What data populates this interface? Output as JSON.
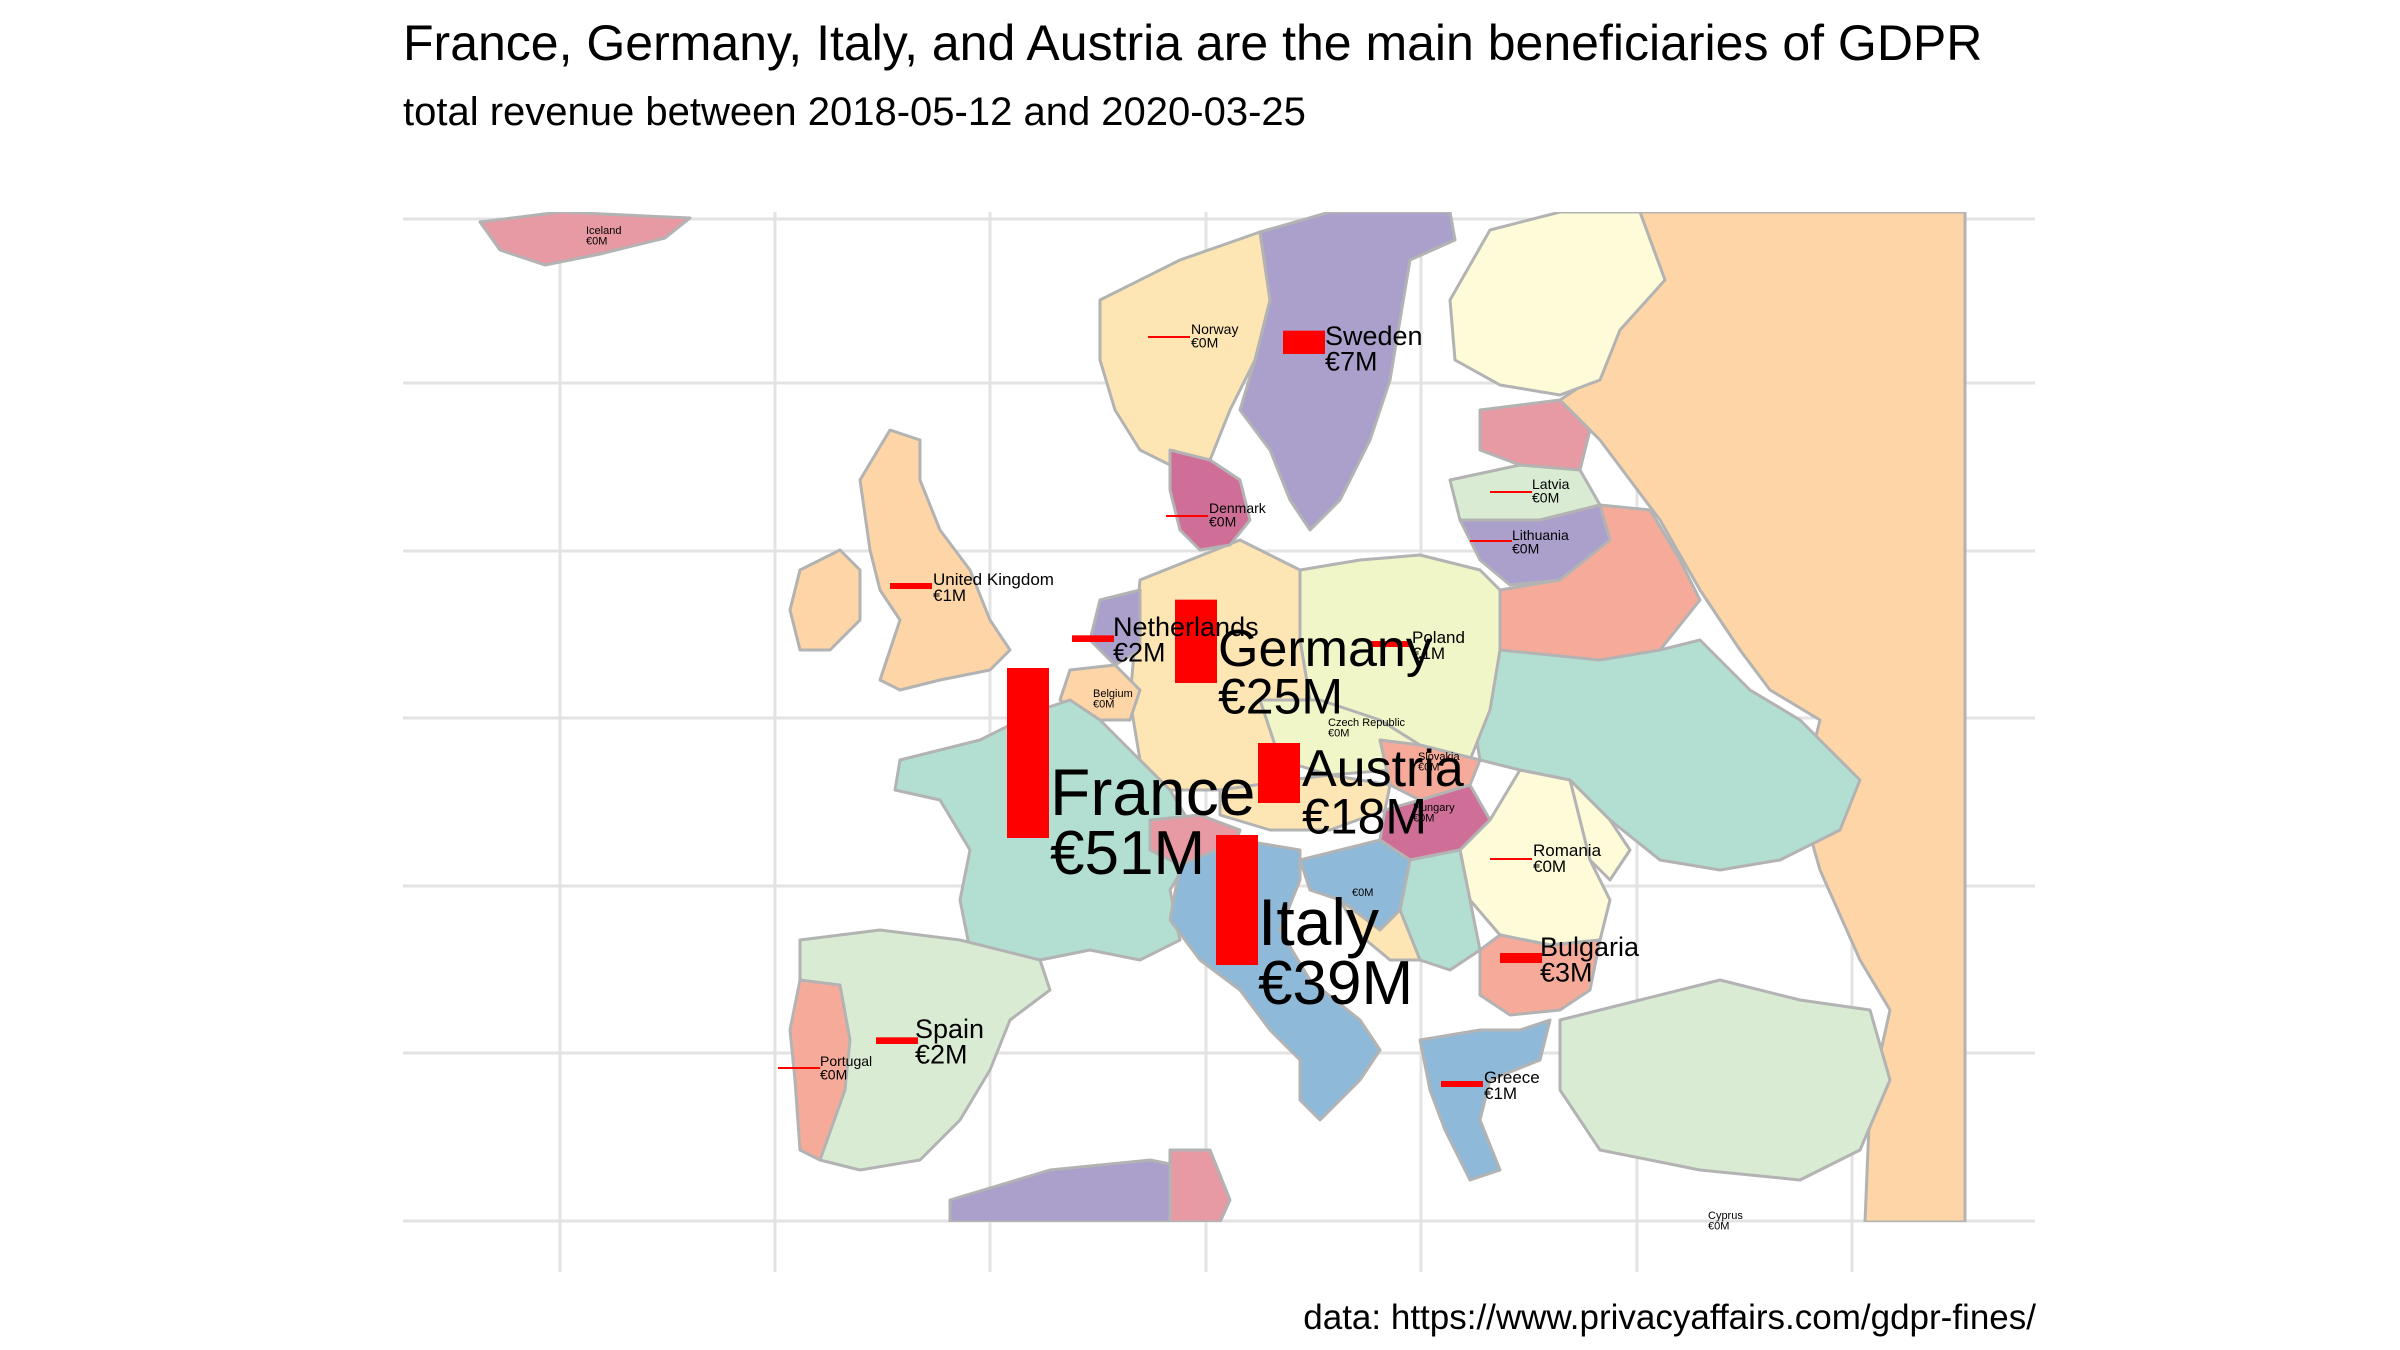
{
  "title": "France, Germany, Italy, and Austria are the main beneficiaries of GDPR",
  "subtitle": "total revenue between 2018-05-12 and 2020-03-25",
  "caption": "data: https://www.privacyaffairs.com/gdpr-fines/",
  "colors": {
    "bar": "#ff0000",
    "grid": "#e3e3e3",
    "border": "#b3b3b3"
  },
  "chart_data": {
    "type": "bar",
    "encoding": "bar height proportional to total GDPR fine revenue per country",
    "unit": "€M",
    "countries": [
      {
        "name": "France",
        "value": 51,
        "label": "€51M",
        "size": "xl"
      },
      {
        "name": "Italy",
        "value": 39,
        "label": "€39M",
        "size": "xl"
      },
      {
        "name": "Germany",
        "value": 25,
        "label": "€25M",
        "size": "l"
      },
      {
        "name": "Austria",
        "value": 18,
        "label": "€18M",
        "size": "l"
      },
      {
        "name": "Sweden",
        "value": 7,
        "label": "€7M",
        "size": "m"
      },
      {
        "name": "Bulgaria",
        "value": 3,
        "label": "€3M",
        "size": "m"
      },
      {
        "name": "Spain",
        "value": 2,
        "label": "€2M",
        "size": "m"
      },
      {
        "name": "Netherlands",
        "value": 2,
        "label": "€2M",
        "size": "m"
      },
      {
        "name": "United Kingdom",
        "value": 1,
        "label": "€1M",
        "size": "s"
      },
      {
        "name": "Poland",
        "value": 1,
        "label": "€1M",
        "size": "s"
      },
      {
        "name": "Greece",
        "value": 1,
        "label": "€1M",
        "size": "s"
      },
      {
        "name": "Romania",
        "value": 0,
        "label": "€0M",
        "size": "s"
      },
      {
        "name": "Norway",
        "value": 0,
        "label": "€0M",
        "size": "xs"
      },
      {
        "name": "Denmark",
        "value": 0,
        "label": "€0M",
        "size": "xs"
      },
      {
        "name": "Latvia",
        "value": 0,
        "label": "€0M",
        "size": "xs"
      },
      {
        "name": "Lithuania",
        "value": 0,
        "label": "€0M",
        "size": "xs"
      },
      {
        "name": "Belgium",
        "value": 0,
        "label": "€0M",
        "size": "xxs"
      },
      {
        "name": "Czech Republic",
        "value": 0,
        "label": "€0M",
        "size": "xxs"
      },
      {
        "name": "Slovakia",
        "value": 0,
        "label": "€0M",
        "size": "xxs"
      },
      {
        "name": "Hungary",
        "value": 0,
        "label": "€0M",
        "size": "xxs"
      },
      {
        "name": "Portugal",
        "value": 0,
        "label": "€0M",
        "size": "xs"
      },
      {
        "name": "Cyprus",
        "value": 0,
        "label": "€0M",
        "size": "xxs"
      },
      {
        "name": "Iceland",
        "value": 0,
        "label": "€0M",
        "size": "xxs"
      },
      {
        "name": "",
        "value": 0,
        "label": "€0M",
        "size": "xxs"
      }
    ]
  }
}
